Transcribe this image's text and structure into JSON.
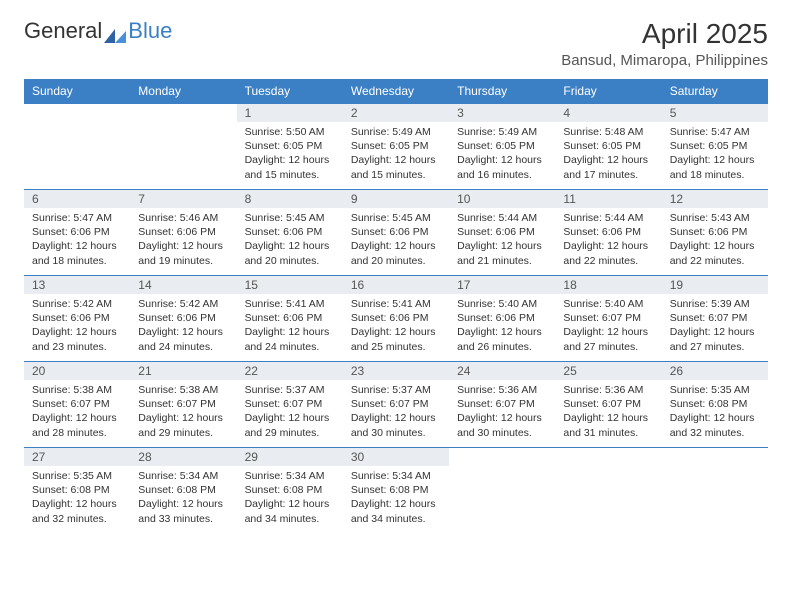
{
  "logo": {
    "text1": "General",
    "text2": "Blue"
  },
  "title": "April 2025",
  "location": "Bansud, Mimaropa, Philippines",
  "colors": {
    "header_bg": "#3b7fc4",
    "header_text": "#ffffff",
    "daynum_bg": "#e9edf1",
    "border": "#3b7fc4",
    "text": "#333333",
    "page_bg": "#ffffff"
  },
  "day_headers": [
    "Sunday",
    "Monday",
    "Tuesday",
    "Wednesday",
    "Thursday",
    "Friday",
    "Saturday"
  ],
  "weeks": [
    [
      {
        "n": "",
        "sunrise": "",
        "sunset": "",
        "daylight": ""
      },
      {
        "n": "",
        "sunrise": "",
        "sunset": "",
        "daylight": ""
      },
      {
        "n": "1",
        "sunrise": "Sunrise: 5:50 AM",
        "sunset": "Sunset: 6:05 PM",
        "daylight": "Daylight: 12 hours and 15 minutes."
      },
      {
        "n": "2",
        "sunrise": "Sunrise: 5:49 AM",
        "sunset": "Sunset: 6:05 PM",
        "daylight": "Daylight: 12 hours and 15 minutes."
      },
      {
        "n": "3",
        "sunrise": "Sunrise: 5:49 AM",
        "sunset": "Sunset: 6:05 PM",
        "daylight": "Daylight: 12 hours and 16 minutes."
      },
      {
        "n": "4",
        "sunrise": "Sunrise: 5:48 AM",
        "sunset": "Sunset: 6:05 PM",
        "daylight": "Daylight: 12 hours and 17 minutes."
      },
      {
        "n": "5",
        "sunrise": "Sunrise: 5:47 AM",
        "sunset": "Sunset: 6:05 PM",
        "daylight": "Daylight: 12 hours and 18 minutes."
      }
    ],
    [
      {
        "n": "6",
        "sunrise": "Sunrise: 5:47 AM",
        "sunset": "Sunset: 6:06 PM",
        "daylight": "Daylight: 12 hours and 18 minutes."
      },
      {
        "n": "7",
        "sunrise": "Sunrise: 5:46 AM",
        "sunset": "Sunset: 6:06 PM",
        "daylight": "Daylight: 12 hours and 19 minutes."
      },
      {
        "n": "8",
        "sunrise": "Sunrise: 5:45 AM",
        "sunset": "Sunset: 6:06 PM",
        "daylight": "Daylight: 12 hours and 20 minutes."
      },
      {
        "n": "9",
        "sunrise": "Sunrise: 5:45 AM",
        "sunset": "Sunset: 6:06 PM",
        "daylight": "Daylight: 12 hours and 20 minutes."
      },
      {
        "n": "10",
        "sunrise": "Sunrise: 5:44 AM",
        "sunset": "Sunset: 6:06 PM",
        "daylight": "Daylight: 12 hours and 21 minutes."
      },
      {
        "n": "11",
        "sunrise": "Sunrise: 5:44 AM",
        "sunset": "Sunset: 6:06 PM",
        "daylight": "Daylight: 12 hours and 22 minutes."
      },
      {
        "n": "12",
        "sunrise": "Sunrise: 5:43 AM",
        "sunset": "Sunset: 6:06 PM",
        "daylight": "Daylight: 12 hours and 22 minutes."
      }
    ],
    [
      {
        "n": "13",
        "sunrise": "Sunrise: 5:42 AM",
        "sunset": "Sunset: 6:06 PM",
        "daylight": "Daylight: 12 hours and 23 minutes."
      },
      {
        "n": "14",
        "sunrise": "Sunrise: 5:42 AM",
        "sunset": "Sunset: 6:06 PM",
        "daylight": "Daylight: 12 hours and 24 minutes."
      },
      {
        "n": "15",
        "sunrise": "Sunrise: 5:41 AM",
        "sunset": "Sunset: 6:06 PM",
        "daylight": "Daylight: 12 hours and 24 minutes."
      },
      {
        "n": "16",
        "sunrise": "Sunrise: 5:41 AM",
        "sunset": "Sunset: 6:06 PM",
        "daylight": "Daylight: 12 hours and 25 minutes."
      },
      {
        "n": "17",
        "sunrise": "Sunrise: 5:40 AM",
        "sunset": "Sunset: 6:06 PM",
        "daylight": "Daylight: 12 hours and 26 minutes."
      },
      {
        "n": "18",
        "sunrise": "Sunrise: 5:40 AM",
        "sunset": "Sunset: 6:07 PM",
        "daylight": "Daylight: 12 hours and 27 minutes."
      },
      {
        "n": "19",
        "sunrise": "Sunrise: 5:39 AM",
        "sunset": "Sunset: 6:07 PM",
        "daylight": "Daylight: 12 hours and 27 minutes."
      }
    ],
    [
      {
        "n": "20",
        "sunrise": "Sunrise: 5:38 AM",
        "sunset": "Sunset: 6:07 PM",
        "daylight": "Daylight: 12 hours and 28 minutes."
      },
      {
        "n": "21",
        "sunrise": "Sunrise: 5:38 AM",
        "sunset": "Sunset: 6:07 PM",
        "daylight": "Daylight: 12 hours and 29 minutes."
      },
      {
        "n": "22",
        "sunrise": "Sunrise: 5:37 AM",
        "sunset": "Sunset: 6:07 PM",
        "daylight": "Daylight: 12 hours and 29 minutes."
      },
      {
        "n": "23",
        "sunrise": "Sunrise: 5:37 AM",
        "sunset": "Sunset: 6:07 PM",
        "daylight": "Daylight: 12 hours and 30 minutes."
      },
      {
        "n": "24",
        "sunrise": "Sunrise: 5:36 AM",
        "sunset": "Sunset: 6:07 PM",
        "daylight": "Daylight: 12 hours and 30 minutes."
      },
      {
        "n": "25",
        "sunrise": "Sunrise: 5:36 AM",
        "sunset": "Sunset: 6:07 PM",
        "daylight": "Daylight: 12 hours and 31 minutes."
      },
      {
        "n": "26",
        "sunrise": "Sunrise: 5:35 AM",
        "sunset": "Sunset: 6:08 PM",
        "daylight": "Daylight: 12 hours and 32 minutes."
      }
    ],
    [
      {
        "n": "27",
        "sunrise": "Sunrise: 5:35 AM",
        "sunset": "Sunset: 6:08 PM",
        "daylight": "Daylight: 12 hours and 32 minutes."
      },
      {
        "n": "28",
        "sunrise": "Sunrise: 5:34 AM",
        "sunset": "Sunset: 6:08 PM",
        "daylight": "Daylight: 12 hours and 33 minutes."
      },
      {
        "n": "29",
        "sunrise": "Sunrise: 5:34 AM",
        "sunset": "Sunset: 6:08 PM",
        "daylight": "Daylight: 12 hours and 34 minutes."
      },
      {
        "n": "30",
        "sunrise": "Sunrise: 5:34 AM",
        "sunset": "Sunset: 6:08 PM",
        "daylight": "Daylight: 12 hours and 34 minutes."
      },
      {
        "n": "",
        "sunrise": "",
        "sunset": "",
        "daylight": ""
      },
      {
        "n": "",
        "sunrise": "",
        "sunset": "",
        "daylight": ""
      },
      {
        "n": "",
        "sunrise": "",
        "sunset": "",
        "daylight": ""
      }
    ]
  ]
}
